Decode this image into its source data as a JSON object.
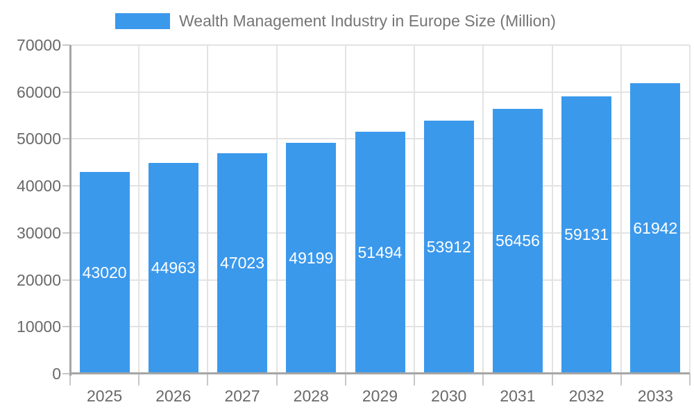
{
  "chart_data": {
    "type": "bar",
    "title": "Wealth Management Industry in Europe Size (Million)",
    "categories": [
      "2025",
      "2026",
      "2027",
      "2028",
      "2029",
      "2030",
      "2031",
      "2032",
      "2033"
    ],
    "values": [
      43020,
      44963,
      47023,
      49199,
      51494,
      53912,
      56456,
      59131,
      61942
    ],
    "xlabel": "",
    "ylabel": "",
    "ylim": [
      0,
      70000
    ],
    "yticks": [
      0,
      10000,
      20000,
      30000,
      40000,
      50000,
      60000,
      70000
    ],
    "grid": true,
    "legend_position": "top-left",
    "bar_label_position": "inside-center",
    "colors": {
      "bar": "#3B99EC",
      "bar_label": "#FFFFFF",
      "text": "#696969",
      "legend_text": "#757575",
      "grid": "#E3E3E3",
      "axis": "#A5A5A5",
      "tick": "#C7C7C7",
      "background": "#FFFFFF"
    }
  }
}
